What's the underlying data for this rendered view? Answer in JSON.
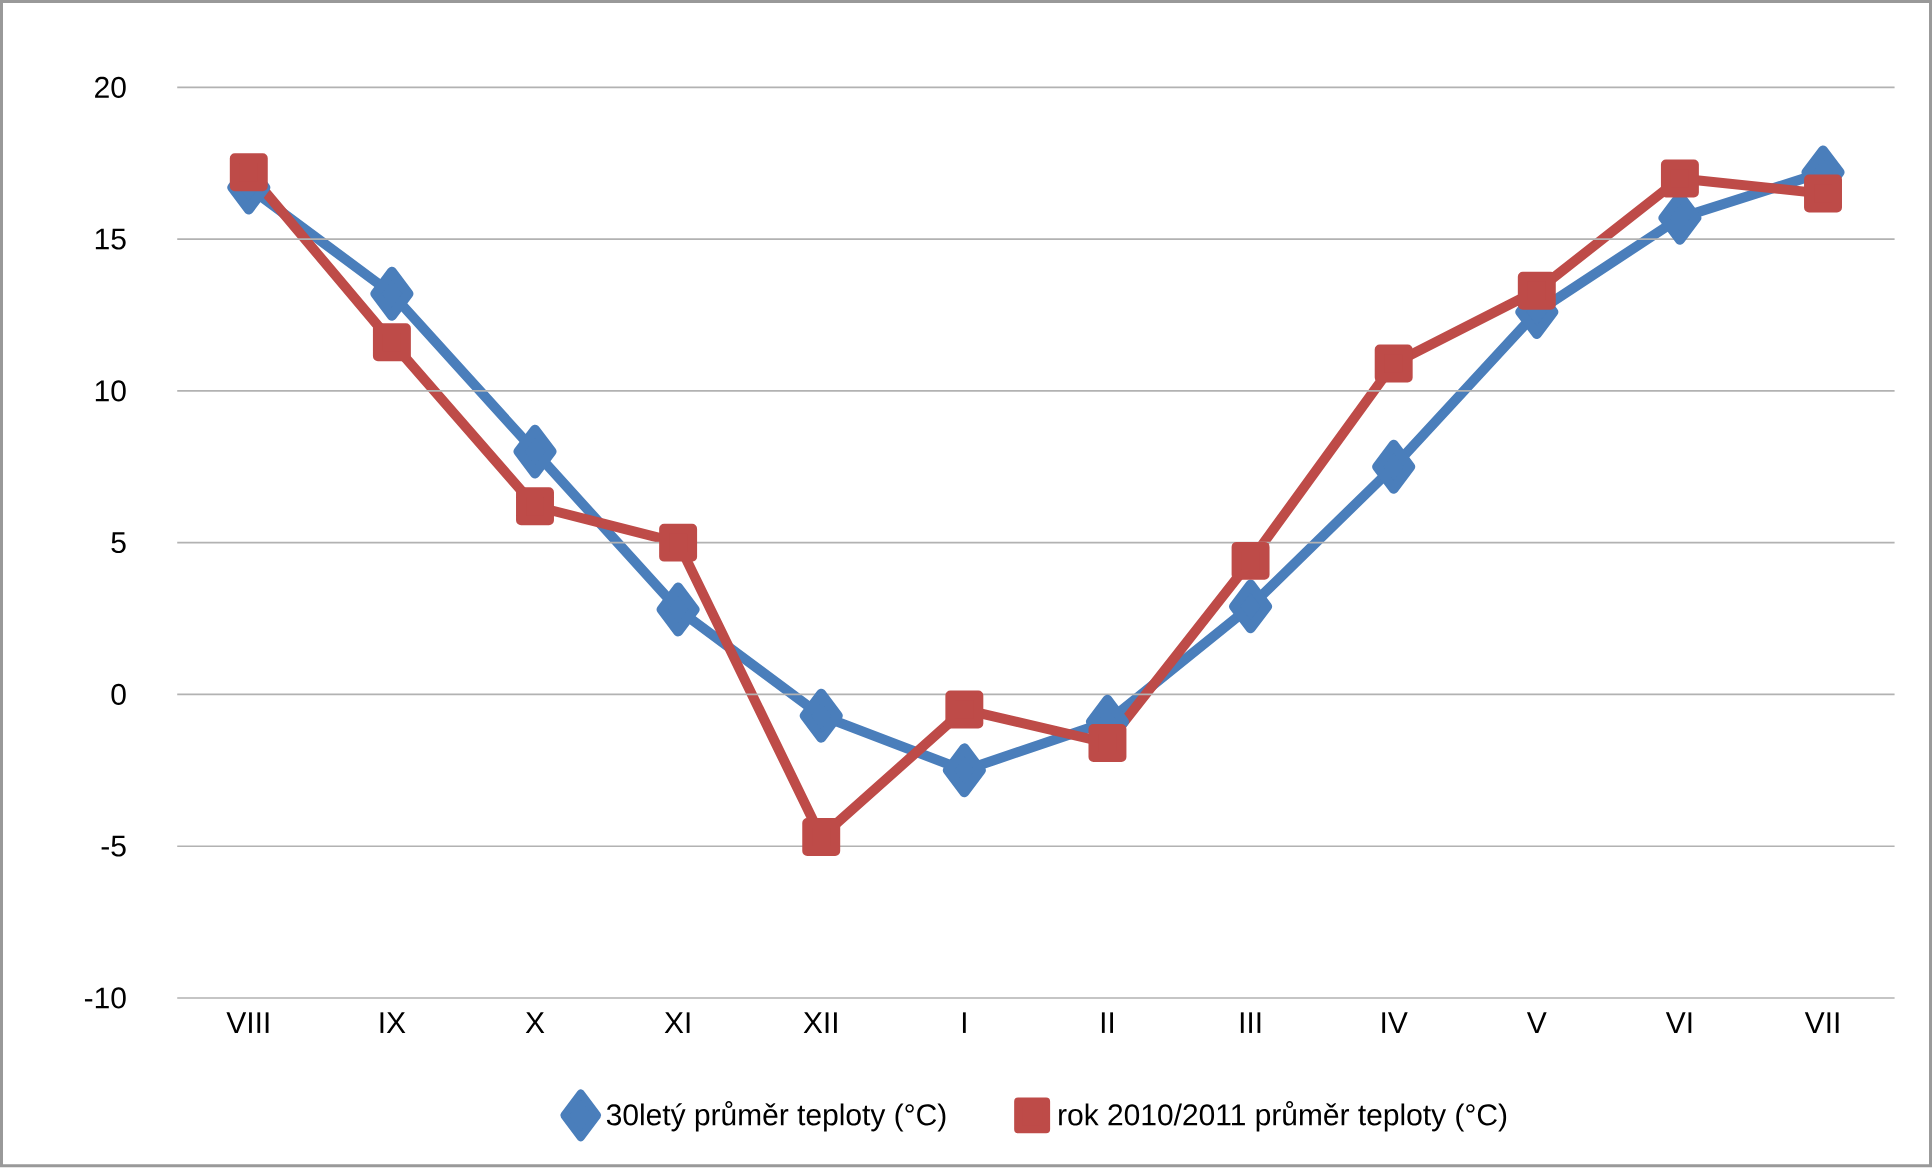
{
  "chart_data": {
    "type": "line",
    "categories": [
      "VIII",
      "IX",
      "X",
      "XI",
      "XII",
      "I",
      "II",
      "III",
      "IV",
      "V",
      "VI",
      "VII"
    ],
    "series": [
      {
        "name": "30letý průměr teploty (°C)",
        "color": "#4a7ebb",
        "marker": "diamond",
        "values": [
          16.7,
          13.2,
          8.0,
          2.8,
          -0.7,
          -2.5,
          -0.9,
          2.9,
          7.5,
          12.6,
          15.7,
          17.2
        ]
      },
      {
        "name": "rok 2010/2011 průměr teploty (°C)",
        "color": "#be4b48",
        "marker": "square",
        "values": [
          17.2,
          11.6,
          6.2,
          5.0,
          -4.7,
          -0.5,
          -1.6,
          4.4,
          10.9,
          13.3,
          17.0,
          16.5
        ]
      }
    ],
    "ylim": [
      -10,
      20
    ],
    "yticks": [
      -10,
      -5,
      0,
      5,
      10,
      15,
      20
    ],
    "grid": "y",
    "legend": "bottom"
  }
}
